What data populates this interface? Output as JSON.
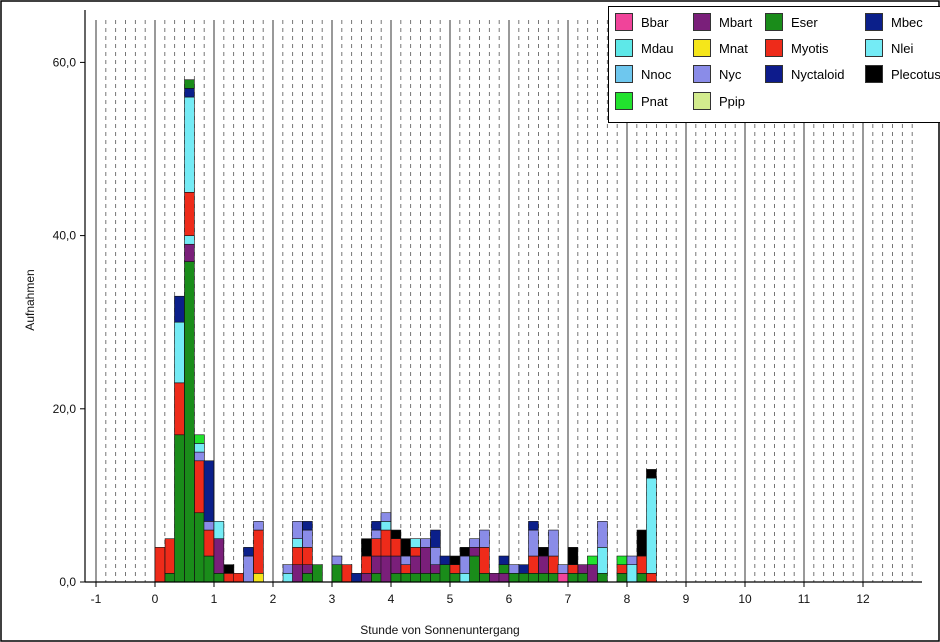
{
  "chart_data": {
    "type": "bar",
    "stacked": true,
    "xlabel": "Stunde von Sonnenuntergang",
    "ylabel": "Aufnahmen",
    "xlim": [
      -1,
      13
    ],
    "ylim": [
      0,
      66
    ],
    "bin_width": 0.1667,
    "xticks": [
      "-1",
      "0",
      "1",
      "2",
      "3",
      "4",
      "5",
      "6",
      "7",
      "8",
      "9",
      "10",
      "11",
      "12"
    ],
    "yticks": [
      "0,0",
      "20,0",
      "40,0",
      "60,0"
    ],
    "grid": "vertical lines: solid at whole hours, dashed every 10 minutes",
    "legend_position": "top-right",
    "series": [
      {
        "name": "Bbar",
        "color": "#f0449a"
      },
      {
        "name": "Mbart",
        "color": "#7a1f7a"
      },
      {
        "name": "Eser",
        "color": "#1a8c1a"
      },
      {
        "name": "Mbec",
        "color": "#0b1f8a"
      },
      {
        "name": "Mdau",
        "color": "#5ee8e8"
      },
      {
        "name": "Mnat",
        "color": "#f5e61a"
      },
      {
        "name": "Myotis",
        "color": "#ee2b1a"
      },
      {
        "name": "Nlei",
        "color": "#74ebf5"
      },
      {
        "name": "Nnoc",
        "color": "#6ec7ee"
      },
      {
        "name": "Nyc",
        "color": "#8a8ce8"
      },
      {
        "name": "Nyctaloid",
        "color": "#0d1b8c"
      },
      {
        "name": "Plecotus",
        "color": "#000000"
      },
      {
        "name": "Pnat",
        "color": "#22e22e"
      },
      {
        "name": "Ppip",
        "color": "#d3ec8e"
      }
    ],
    "bins": [
      {
        "x": 0.0,
        "stack": [
          [
            "Myotis",
            4
          ]
        ]
      },
      {
        "x": 0.17,
        "stack": [
          [
            "Eser",
            1
          ],
          [
            "Myotis",
            4
          ]
        ]
      },
      {
        "x": 0.33,
        "stack": [
          [
            "Eser",
            17
          ],
          [
            "Myotis",
            6
          ],
          [
            "Nlei",
            7
          ],
          [
            "Mbec",
            3
          ]
        ]
      },
      {
        "x": 0.5,
        "stack": [
          [
            "Eser",
            37
          ],
          [
            "Mbart",
            2
          ],
          [
            "Nlei",
            1
          ],
          [
            "Myotis",
            5
          ],
          [
            "Nlei",
            11
          ],
          [
            "Mbec",
            1
          ],
          [
            "Eser",
            1
          ]
        ]
      },
      {
        "x": 0.67,
        "stack": [
          [
            "Eser",
            8
          ],
          [
            "Myotis",
            6
          ],
          [
            "Nyc",
            1
          ],
          [
            "Nlei",
            1
          ],
          [
            "Pnat",
            1
          ]
        ]
      },
      {
        "x": 0.83,
        "stack": [
          [
            "Eser",
            3
          ],
          [
            "Myotis",
            3
          ],
          [
            "Nyc",
            1
          ],
          [
            "Mbec",
            7
          ]
        ]
      },
      {
        "x": 1.0,
        "stack": [
          [
            "Eser",
            1
          ],
          [
            "Mbart",
            4
          ],
          [
            "Nlei",
            2
          ]
        ]
      },
      {
        "x": 1.17,
        "stack": [
          [
            "Myotis",
            1
          ],
          [
            "Plecotus",
            1
          ]
        ]
      },
      {
        "x": 1.33,
        "stack": [
          [
            "Myotis",
            1
          ]
        ]
      },
      {
        "x": 1.5,
        "stack": [
          [
            "Nyc",
            3
          ],
          [
            "Mbec",
            1
          ]
        ]
      },
      {
        "x": 1.67,
        "stack": [
          [
            "Mnat",
            1
          ],
          [
            "Myotis",
            5
          ],
          [
            "Nyc",
            1
          ]
        ]
      },
      {
        "x": 2.17,
        "stack": [
          [
            "Nlei",
            1
          ],
          [
            "Nyc",
            1
          ]
        ]
      },
      {
        "x": 2.33,
        "stack": [
          [
            "Mbart",
            2
          ],
          [
            "Myotis",
            2
          ],
          [
            "Nlei",
            1
          ],
          [
            "Nyc",
            2
          ]
        ]
      },
      {
        "x": 2.5,
        "stack": [
          [
            "Eser",
            1
          ],
          [
            "Mbart",
            1
          ],
          [
            "Myotis",
            2
          ],
          [
            "Nyc",
            2
          ],
          [
            "Mbec",
            1
          ]
        ]
      },
      {
        "x": 2.67,
        "stack": [
          [
            "Eser",
            2
          ]
        ]
      },
      {
        "x": 3.0,
        "stack": [
          [
            "Eser",
            2
          ],
          [
            "Nyc",
            1
          ]
        ]
      },
      {
        "x": 3.17,
        "stack": [
          [
            "Myotis",
            2
          ]
        ]
      },
      {
        "x": 3.33,
        "stack": [
          [
            "Mbec",
            1
          ]
        ]
      },
      {
        "x": 3.5,
        "stack": [
          [
            "Mbart",
            1
          ],
          [
            "Myotis",
            2
          ],
          [
            "Plecotus",
            2
          ]
        ]
      },
      {
        "x": 3.67,
        "stack": [
          [
            "Eser",
            1
          ],
          [
            "Mbart",
            2
          ],
          [
            "Myotis",
            2
          ],
          [
            "Nyc",
            1
          ],
          [
            "Mbec",
            1
          ]
        ]
      },
      {
        "x": 3.83,
        "stack": [
          [
            "Mbart",
            3
          ],
          [
            "Myotis",
            3
          ],
          [
            "Nlei",
            1
          ],
          [
            "Nyc",
            1
          ]
        ]
      },
      {
        "x": 4.0,
        "stack": [
          [
            "Eser",
            1
          ],
          [
            "Mbart",
            2
          ],
          [
            "Myotis",
            2
          ],
          [
            "Plecotus",
            1
          ]
        ]
      },
      {
        "x": 4.17,
        "stack": [
          [
            "Eser",
            1
          ],
          [
            "Myotis",
            1
          ],
          [
            "Nyc",
            1
          ],
          [
            "Plecotus",
            2
          ]
        ]
      },
      {
        "x": 4.33,
        "stack": [
          [
            "Eser",
            1
          ],
          [
            "Mbart",
            2
          ],
          [
            "Myotis",
            1
          ],
          [
            "Nlei",
            1
          ]
        ]
      },
      {
        "x": 4.5,
        "stack": [
          [
            "Eser",
            1
          ],
          [
            "Mbart",
            3
          ],
          [
            "Nyc",
            1
          ]
        ]
      },
      {
        "x": 4.67,
        "stack": [
          [
            "Eser",
            1
          ],
          [
            "Mbart",
            1
          ],
          [
            "Nyc",
            2
          ],
          [
            "Mbec",
            2
          ]
        ]
      },
      {
        "x": 4.83,
        "stack": [
          [
            "Eser",
            2
          ],
          [
            "Mbec",
            1
          ]
        ]
      },
      {
        "x": 5.0,
        "stack": [
          [
            "Eser",
            1
          ],
          [
            "Myotis",
            1
          ],
          [
            "Plecotus",
            1
          ]
        ]
      },
      {
        "x": 5.17,
        "stack": [
          [
            "Nlei",
            1
          ],
          [
            "Nyc",
            2
          ],
          [
            "Plecotus",
            1
          ]
        ]
      },
      {
        "x": 5.33,
        "stack": [
          [
            "Eser",
            3
          ],
          [
            "Mbart",
            1
          ],
          [
            "Nyc",
            1
          ]
        ]
      },
      {
        "x": 5.5,
        "stack": [
          [
            "Eser",
            1
          ],
          [
            "Myotis",
            3
          ],
          [
            "Nyc",
            2
          ]
        ]
      },
      {
        "x": 5.67,
        "stack": [
          [
            "Mbart",
            1
          ]
        ]
      },
      {
        "x": 5.83,
        "stack": [
          [
            "Mbart",
            1
          ],
          [
            "Eser",
            1
          ],
          [
            "Mbec",
            1
          ]
        ]
      },
      {
        "x": 6.0,
        "stack": [
          [
            "Eser",
            1
          ],
          [
            "Nyc",
            1
          ]
        ]
      },
      {
        "x": 6.17,
        "stack": [
          [
            "Eser",
            1
          ],
          [
            "Mbec",
            1
          ]
        ]
      },
      {
        "x": 6.33,
        "stack": [
          [
            "Eser",
            1
          ],
          [
            "Myotis",
            2
          ],
          [
            "Nyc",
            3
          ],
          [
            "Mbec",
            1
          ]
        ]
      },
      {
        "x": 6.5,
        "stack": [
          [
            "Eser",
            1
          ],
          [
            "Mbart",
            2
          ],
          [
            "Plecotus",
            1
          ]
        ]
      },
      {
        "x": 6.67,
        "stack": [
          [
            "Eser",
            1
          ],
          [
            "Myotis",
            2
          ],
          [
            "Nyc",
            3
          ]
        ]
      },
      {
        "x": 6.83,
        "stack": [
          [
            "Bbar",
            1
          ],
          [
            "Nyc",
            1
          ]
        ]
      },
      {
        "x": 7.0,
        "stack": [
          [
            "Eser",
            1
          ],
          [
            "Myotis",
            1
          ],
          [
            "Plecotus",
            2
          ]
        ]
      },
      {
        "x": 7.17,
        "stack": [
          [
            "Eser",
            1
          ],
          [
            "Mbart",
            1
          ]
        ]
      },
      {
        "x": 7.33,
        "stack": [
          [
            "Mbart",
            2
          ],
          [
            "Pnat",
            1
          ]
        ]
      },
      {
        "x": 7.5,
        "stack": [
          [
            "Eser",
            1
          ],
          [
            "Nlei",
            3
          ],
          [
            "Nyc",
            3
          ]
        ]
      },
      {
        "x": 7.83,
        "stack": [
          [
            "Eser",
            1
          ],
          [
            "Myotis",
            1
          ],
          [
            "Pnat",
            1
          ]
        ]
      },
      {
        "x": 8.0,
        "stack": [
          [
            "Nlei",
            2
          ],
          [
            "Nyc",
            1
          ]
        ]
      },
      {
        "x": 8.17,
        "stack": [
          [
            "Eser",
            1
          ],
          [
            "Myotis",
            2
          ],
          [
            "Plecotus",
            3
          ]
        ]
      },
      {
        "x": 8.33,
        "stack": [
          [
            "Myotis",
            1
          ],
          [
            "Nlei",
            11
          ],
          [
            "Plecotus",
            1
          ]
        ]
      }
    ]
  }
}
